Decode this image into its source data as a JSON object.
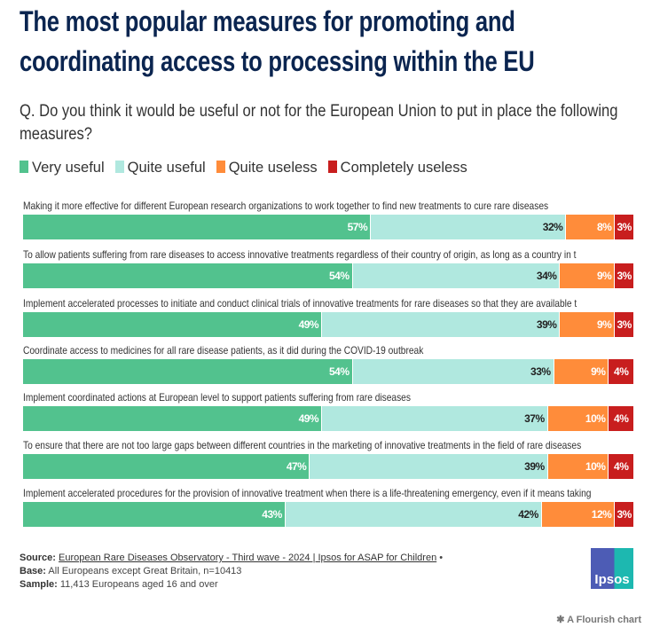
{
  "title": "The most popular measures for promoting and coordinating access to processing within the EU",
  "question": "Q. Do you think it would be useful or not for the European Union to put in place the following measures?",
  "chart_data": {
    "type": "bar",
    "stacked": true,
    "orientation": "horizontal",
    "legend": [
      {
        "name": "Very useful",
        "color": "#52c28e"
      },
      {
        "name": "Quite useful",
        "color": "#b0e8df"
      },
      {
        "name": "Quite useless",
        "color": "#ff8c3a"
      },
      {
        "name": "Completely useless",
        "color": "#c81e1e"
      }
    ],
    "categories": [
      "Making it more effective for different European research organizations to work together to find new treatments to cure rare diseases",
      "To allow patients suffering from rare diseases to access innovative treatments regardless of their country of origin, as long as a country in t",
      "Implement accelerated processes to initiate and conduct clinical trials of innovative treatments for rare diseases so that they are available t",
      "Coordinate access to medicines for all rare disease patients, as it did during the COVID-19 outbreak",
      "Implement coordinated actions at European level to support patients suffering from rare diseases",
      "To ensure that there are not too large gaps between different countries in the marketing of innovative treatments in the field of rare diseases",
      "Implement accelerated procedures for the provision of innovative treatment when there is a life-threatening emergency, even if it means taking"
    ],
    "series": [
      {
        "name": "Very useful",
        "values": [
          57,
          54,
          49,
          54,
          49,
          47,
          43
        ]
      },
      {
        "name": "Quite useful",
        "values": [
          32,
          34,
          39,
          33,
          37,
          39,
          42
        ]
      },
      {
        "name": "Quite useless",
        "values": [
          8,
          9,
          9,
          9,
          10,
          10,
          12
        ]
      },
      {
        "name": "Completely useless",
        "values": [
          3,
          3,
          3,
          4,
          4,
          4,
          3
        ]
      }
    ],
    "unit": "%"
  },
  "footer": {
    "source_label": "Source:",
    "source_link": "European Rare Diseases Observatory - Third wave - 2024 | Ipsos for ASAP for Children",
    "source_bullet": "•",
    "base_label": "Base:",
    "base_text": "All Europeans except Great Britain, n=10413",
    "sample_label": "Sample:",
    "sample_text": "11,413 Europeans aged 16 and over"
  },
  "logo_text": "Ipsos",
  "flourish": "A Flourish chart"
}
